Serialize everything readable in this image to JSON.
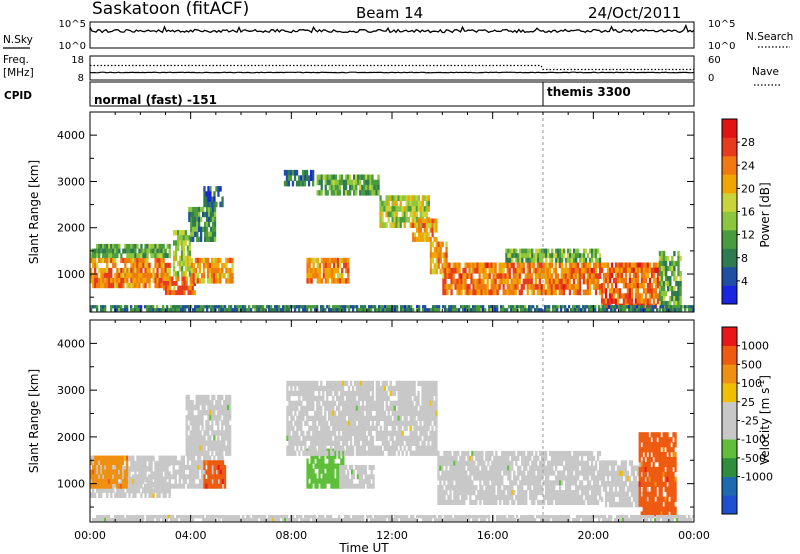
{
  "header": {
    "station": "Saskatoon (fitACF)",
    "beam": "Beam 14",
    "date": "24/Oct/2011"
  },
  "noise_panel": {
    "left_label": "N.Sky",
    "left_ticks": [
      "10^5",
      "10^0"
    ],
    "right_ticks": [
      "10^5",
      "10^0"
    ],
    "right_label": "N.Search",
    "left_legend_style": "solid",
    "right_legend_style": "dotted"
  },
  "freq_panel": {
    "left_label_1": "Freq.",
    "left_label_2": "[MHz]",
    "left_ticks": [
      "18",
      "8"
    ],
    "right_ticks": [
      "60",
      "0"
    ],
    "right_label": "Nave",
    "right_legend_style": "dotted"
  },
  "cpid_panel": {
    "label": "CPID",
    "segments": [
      {
        "start_hour": 0.0,
        "end_hour": 18.0,
        "label": "normal (fast) -151"
      },
      {
        "start_hour": 18.0,
        "end_hour": 24.0,
        "label": "themis 3300"
      }
    ]
  },
  "chart_data": [
    {
      "type": "heatmap",
      "parameter": "power",
      "ylabel": "Slant Range [km]",
      "xlabel": "",
      "xlim_hours": [
        0,
        24
      ],
      "ylim": [
        180,
        4500
      ],
      "yticks": [
        1000,
        2000,
        3000,
        4000
      ],
      "colorbar": {
        "label": "Power [dB]",
        "range": [
          0,
          32
        ],
        "ticks": [
          4,
          8,
          12,
          16,
          20,
          24,
          28
        ],
        "colors": [
          "#1a25e0",
          "#1f4ea2",
          "#2f7a4f",
          "#4a9a3e",
          "#8cc63e",
          "#c9d33a",
          "#f0a500",
          "#f07a10",
          "#e83a1c",
          "#e01414"
        ]
      },
      "regions": [
        {
          "t0": 0.0,
          "t1": 3.2,
          "r0": 700,
          "r1": 1350,
          "level": 23
        },
        {
          "t0": 0.0,
          "t1": 3.2,
          "r0": 1350,
          "r1": 1650,
          "level": 12
        },
        {
          "t0": 2.9,
          "t1": 4.2,
          "r0": 550,
          "r1": 950,
          "level": 24
        },
        {
          "t0": 3.3,
          "t1": 4.0,
          "r0": 950,
          "r1": 1950,
          "level": 15
        },
        {
          "t0": 3.9,
          "t1": 5.0,
          "r0": 1700,
          "r1": 2450,
          "level": 10
        },
        {
          "t0": 4.0,
          "t1": 5.7,
          "r0": 800,
          "r1": 1350,
          "level": 22
        },
        {
          "t0": 4.5,
          "t1": 5.3,
          "r0": 2450,
          "r1": 2900,
          "level": 6
        },
        {
          "t0": 8.6,
          "t1": 10.3,
          "r0": 800,
          "r1": 1350,
          "level": 23
        },
        {
          "t0": 7.7,
          "t1": 8.9,
          "r0": 2900,
          "r1": 3250,
          "level": 6
        },
        {
          "t0": 9.0,
          "t1": 11.5,
          "r0": 2700,
          "r1": 3150,
          "level": 12
        },
        {
          "t0": 11.5,
          "t1": 13.5,
          "r0": 2000,
          "r1": 2700,
          "level": 16
        },
        {
          "t0": 12.8,
          "t1": 13.8,
          "r0": 1700,
          "r1": 2200,
          "level": 22
        },
        {
          "t0": 13.5,
          "t1": 14.2,
          "r0": 1000,
          "r1": 1700,
          "level": 22
        },
        {
          "t0": 14.0,
          "t1": 20.3,
          "r0": 550,
          "r1": 1250,
          "level": 24
        },
        {
          "t0": 16.5,
          "t1": 20.3,
          "r0": 1250,
          "r1": 1550,
          "level": 13
        },
        {
          "t0": 20.3,
          "t1": 22.6,
          "r0": 250,
          "r1": 1250,
          "level": 25
        },
        {
          "t0": 22.6,
          "t1": 23.5,
          "r0": 200,
          "r1": 1500,
          "level": 12
        },
        {
          "t0": 0.0,
          "t1": 24.0,
          "r0": 200,
          "r1": 330,
          "level": 8
        }
      ]
    },
    {
      "type": "heatmap",
      "parameter": "velocity",
      "ylabel": "Slant Range [km]",
      "xlabel": "Time UT",
      "xlim_hours": [
        0,
        24
      ],
      "ylim": [
        180,
        4500
      ],
      "yticks": [
        1000,
        2000,
        3000,
        4000
      ],
      "xticks": [
        "00:00",
        "04:00",
        "08:00",
        "12:00",
        "16:00",
        "20:00",
        "00:00"
      ],
      "colorbar": {
        "label": "Velocity [m s",
        "label_superscript": "-1",
        "label_close": "]",
        "range": [
          -1250,
          1250
        ],
        "ticks": [
          "1000",
          "500",
          "100",
          "25",
          "-25",
          "-100",
          "-500",
          "-1000"
        ],
        "colors": [
          "#2050d0",
          "#1e6ab0",
          "#2f8e3c",
          "#5fbf3a",
          "#c8c8c8",
          "#c8c8c8",
          "#f0c000",
          "#f09010",
          "#ee5a10",
          "#e81818"
        ]
      },
      "regions": [
        {
          "t0": 0.0,
          "t1": 3.2,
          "r0": 700,
          "r1": 1600,
          "level": 25
        },
        {
          "t0": 0.0,
          "t1": 1.5,
          "r0": 900,
          "r1": 1600,
          "level": 700
        },
        {
          "t0": 1.5,
          "t1": 3.2,
          "r0": 800,
          "r1": 1200,
          "level": 0
        },
        {
          "t0": 3.2,
          "t1": 5.3,
          "r0": 900,
          "r1": 1600,
          "level": 100
        },
        {
          "t0": 4.5,
          "t1": 5.4,
          "r0": 900,
          "r1": 1500,
          "level": 900
        },
        {
          "t0": 3.8,
          "t1": 5.6,
          "r0": 1600,
          "r1": 2900,
          "level": 0
        },
        {
          "t0": 8.6,
          "t1": 10.1,
          "r0": 900,
          "r1": 1750,
          "level": -450
        },
        {
          "t0": 9.9,
          "t1": 11.3,
          "r0": 900,
          "r1": 1400,
          "level": -150
        },
        {
          "t0": 7.8,
          "t1": 13.8,
          "r0": 1600,
          "r1": 3200,
          "level": 0
        },
        {
          "t0": 13.8,
          "t1": 20.3,
          "r0": 550,
          "r1": 1700,
          "level": 0
        },
        {
          "t0": 20.3,
          "t1": 22.2,
          "r0": 500,
          "r1": 1500,
          "level": 0
        },
        {
          "t0": 21.8,
          "t1": 23.3,
          "r0": 300,
          "r1": 2100,
          "level": 800
        },
        {
          "t0": 0.0,
          "t1": 24.0,
          "r0": 200,
          "r1": 330,
          "level": 0
        }
      ]
    }
  ]
}
